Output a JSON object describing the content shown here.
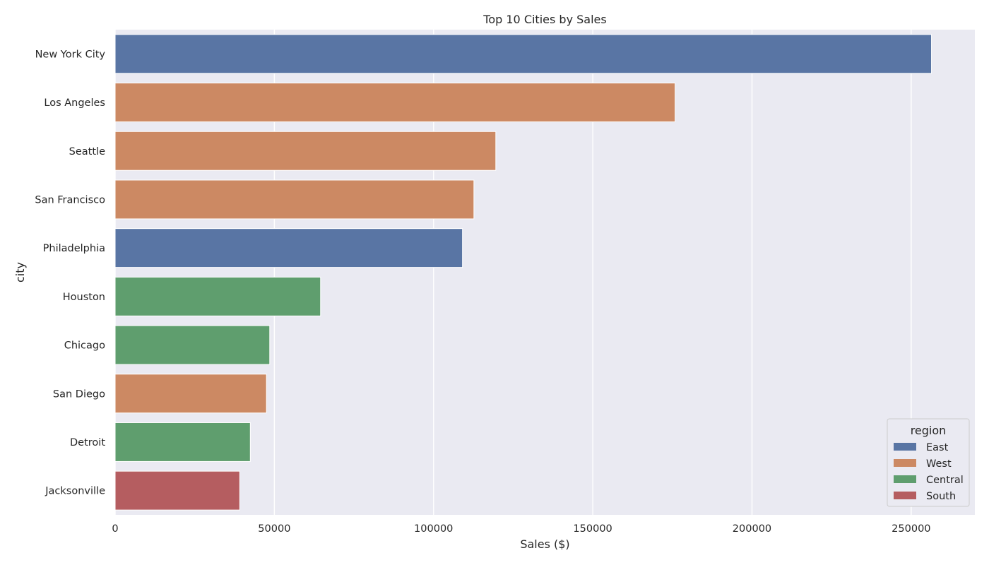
{
  "chart_data": {
    "type": "bar",
    "orientation": "horizontal",
    "title": "Top 10 Cities by Sales",
    "xlabel": "Sales ($)",
    "ylabel": "city",
    "xlim": [
      0,
      270000
    ],
    "xticks": [
      0,
      50000,
      100000,
      150000,
      200000,
      250000
    ],
    "grid": true,
    "categories": [
      "New York City",
      "Los Angeles",
      "Seattle",
      "San Francisco",
      "Philadelphia",
      "Houston",
      "Chicago",
      "San Diego",
      "Detroit",
      "Jacksonville"
    ],
    "values": [
      256368,
      175851,
      119541,
      112670,
      109077,
      64505,
      48540,
      47521,
      42446,
      39133
    ],
    "regions": [
      "East",
      "West",
      "West",
      "West",
      "East",
      "Central",
      "Central",
      "West",
      "Central",
      "South"
    ],
    "legend": {
      "title": "region",
      "placement": "bottom-right",
      "entries": [
        {
          "name": "East",
          "color": "#5975a4"
        },
        {
          "name": "West",
          "color": "#cc8963"
        },
        {
          "name": "Central",
          "color": "#5f9e6e"
        },
        {
          "name": "South",
          "color": "#b55d60"
        }
      ]
    }
  }
}
